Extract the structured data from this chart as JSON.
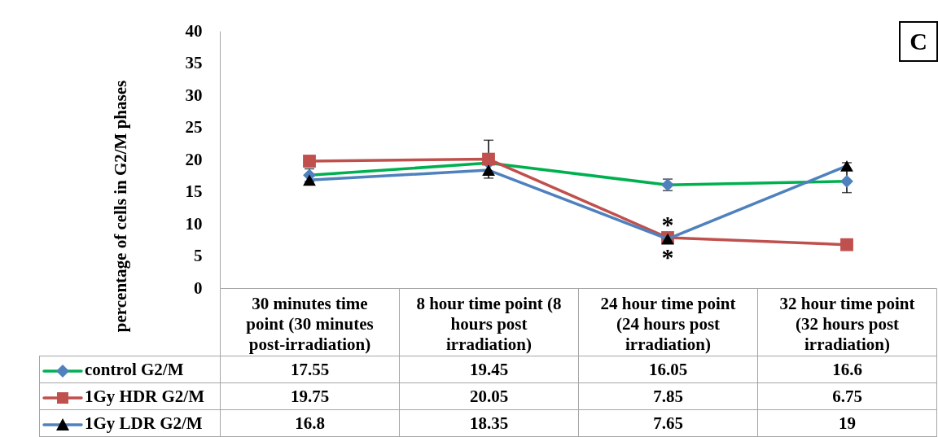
{
  "chart_data": {
    "type": "line",
    "ylabel": "percentage of cells in G2/M phases",
    "categories": [
      "30 minutes time point (30 minutes post-irradiation)",
      "8 hour time point (8 hours post irradiation)",
      "24 hour time point (24 hours post irradiation)",
      "32 hour time point (32 hours post irradiation)"
    ],
    "series": [
      {
        "name": "control G2/M",
        "color": "#00b050",
        "colors": [
          "#4f81bd",
          "#4f81bd",
          "#4f81bd",
          "#4f81bd"
        ],
        "marker": "diamond",
        "values": [
          17.55,
          19.45,
          16.05,
          16.6
        ],
        "errors": [
          1,
          null,
          0.9,
          1.75
        ]
      },
      {
        "name": "1Gy HDR G2/M",
        "color": "#c0504d",
        "colors": [
          "#c0504d",
          "#c0504d",
          "#c0504d",
          "#c0504d"
        ],
        "marker": "square",
        "values": [
          19.75,
          20.05,
          7.85,
          6.75
        ],
        "errors": [
          null,
          2.95,
          null,
          null
        ]
      },
      {
        "name": "1Gy LDR G2/M",
        "color": "#4f81bd",
        "colors": [
          "#000000",
          "#000000",
          "#000000",
          "#000000"
        ],
        "marker": "triangle",
        "values": [
          16.8,
          18.35,
          7.65,
          19
        ],
        "errors": [
          null,
          null,
          null,
          0.5
        ]
      }
    ],
    "ylim": [
      0,
      40
    ],
    "yticks": [
      0,
      5,
      10,
      15,
      20,
      25,
      30,
      35,
      40
    ],
    "data_labels": true,
    "legend": "bottom",
    "annotations": [
      "C",
      "*",
      "*"
    ]
  }
}
